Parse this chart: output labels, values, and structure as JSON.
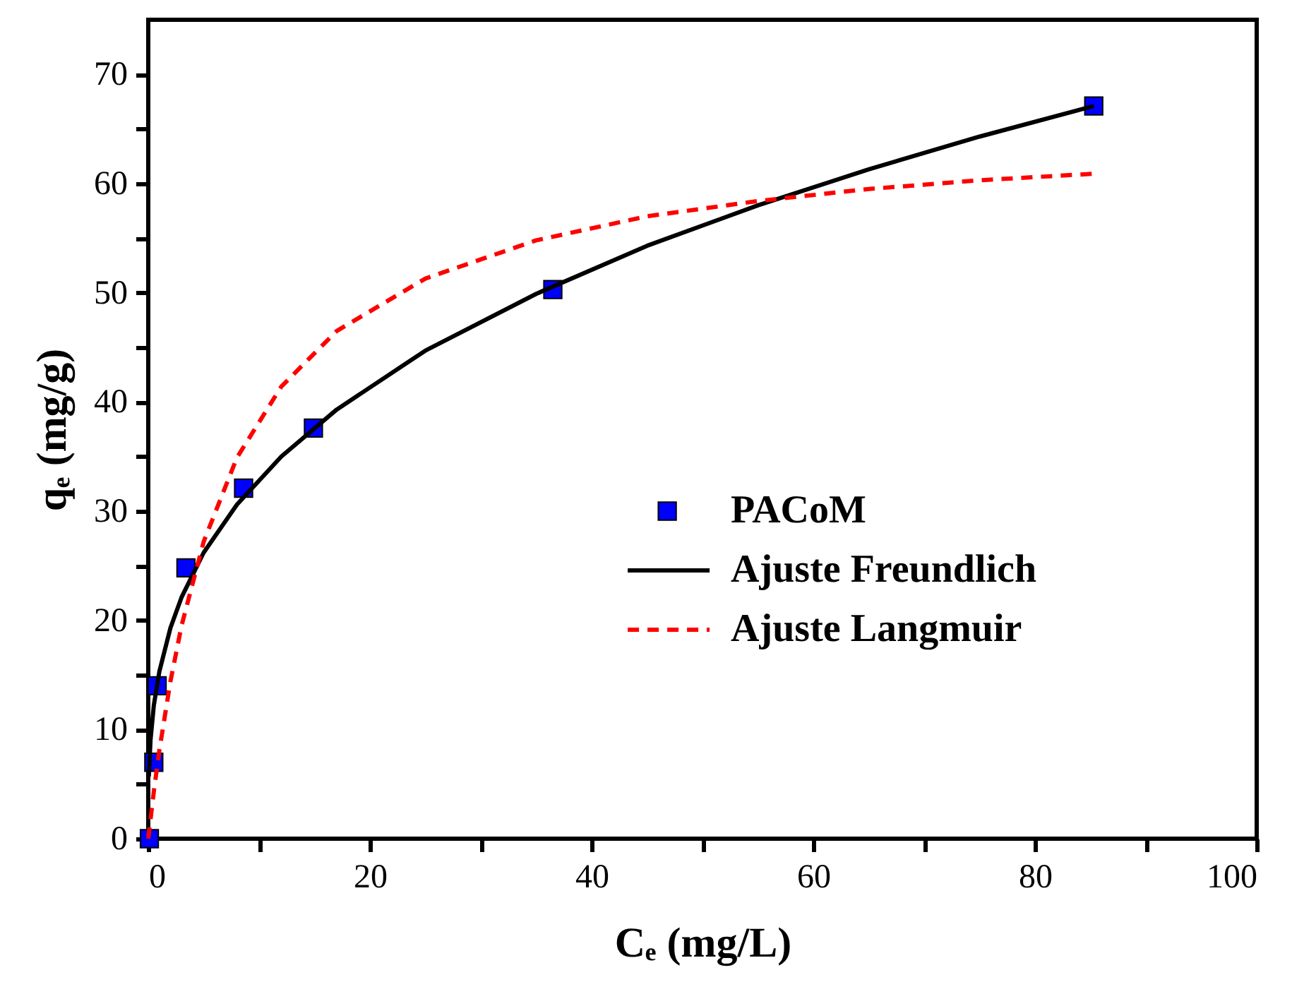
{
  "chart_data": {
    "type": "scatter",
    "xlabel": "Cₑ (mg/L)",
    "ylabel": "qₑ (mg/g)",
    "xlim": [
      0,
      100
    ],
    "ylim": [
      0,
      75
    ],
    "xticks": [
      0,
      {
        "value": 10,
        "label": null
      },
      20,
      {
        "value": 30,
        "label": null
      },
      40,
      {
        "value": 50,
        "label": null
      },
      60,
      {
        "value": 70,
        "label": null
      },
      80,
      {
        "value": 90,
        "label": null
      },
      100
    ],
    "yticks": [
      0,
      {
        "value": 5,
        "label": null
      },
      10,
      {
        "value": 15,
        "label": null
      },
      20,
      {
        "value": 25,
        "label": null
      },
      30,
      {
        "value": 35,
        "label": null
      },
      40,
      {
        "value": 45,
        "label": null
      },
      50,
      {
        "value": 55,
        "label": null
      },
      60,
      {
        "value": 65,
        "label": null
      },
      70
    ],
    "grid": false,
    "legend": "center",
    "series": [
      {
        "name": "PACoM",
        "marker": "square",
        "color": "#0000ff",
        "x": [
          0.1,
          0.5,
          0.8,
          3.4,
          8.6,
          14.9,
          36.5,
          85.3
        ],
        "values": [
          0,
          7,
          14,
          24.8,
          32.1,
          37.6,
          50.3,
          67.1
        ]
      },
      {
        "name": "Ajuste Freundlich",
        "type": "line",
        "line_style": "solid",
        "color": "#000000",
        "x": [
          0.05,
          0.2,
          0.5,
          1,
          2,
          3,
          5,
          8,
          12,
          17,
          25,
          35,
          45,
          55,
          65,
          75,
          85.3
        ],
        "values": [
          5.7,
          9.0,
          12.2,
          15.3,
          19.3,
          22.1,
          26.2,
          30.6,
          35.0,
          39.3,
          44.7,
          49.9,
          54.3,
          58.0,
          61.3,
          64.3,
          67.1
        ]
      },
      {
        "name": "Ajuste Langmuir",
        "type": "line",
        "line_style": "dashed",
        "color": "#ff0000",
        "x": [
          0,
          0.5,
          1,
          2,
          3,
          5,
          8,
          12,
          17,
          25,
          35,
          45,
          55,
          65,
          75,
          85.3
        ],
        "values": [
          0,
          4.3,
          8.1,
          14.4,
          19.5,
          27.2,
          34.9,
          41.4,
          46.5,
          51.3,
          54.8,
          57.0,
          58.4,
          59.5,
          60.3,
          60.9
        ]
      }
    ]
  }
}
